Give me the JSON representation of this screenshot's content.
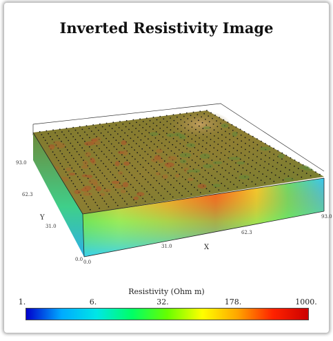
{
  "chart_data": {
    "type": "heatmap",
    "title": "Inverted Resistivity Image",
    "xlabel": "X",
    "ylabel": "Y",
    "x_ticks": [
      "0.0",
      "31.0",
      "62.3",
      "93.0"
    ],
    "y_ticks": [
      "0.0",
      "31.0",
      "62.3",
      "93.0"
    ],
    "colorbar": {
      "label": "Resistivity (Ohm m)",
      "ticks": [
        "1.",
        "6.",
        "32.",
        "178.",
        "1000."
      ],
      "tick_values": [
        1,
        6,
        32,
        178,
        1000
      ],
      "scale": "log",
      "colors": [
        "#0000cc",
        "#00aaff",
        "#00e6e6",
        "#00ff66",
        "#66ff00",
        "#ffff00",
        "#ffa500",
        "#ff2200",
        "#cc0000"
      ]
    },
    "surface_color": "#8a7a30",
    "front_face_profile": [
      {
        "x": 0.0,
        "top": 320,
        "mid": 90,
        "bottom": 40
      },
      {
        "x": 15.5,
        "top": 420,
        "mid": 110,
        "bottom": 25
      },
      {
        "x": 31.0,
        "top": 600,
        "mid": 150,
        "bottom": 20
      },
      {
        "x": 46.5,
        "top": 750,
        "mid": 120,
        "bottom": 15
      },
      {
        "x": 62.3,
        "top": 650,
        "mid": 60,
        "bottom": 12
      },
      {
        "x": 77.5,
        "top": 90,
        "mid": 30,
        "bottom": 10
      },
      {
        "x": 93.0,
        "top": 40,
        "mid": 20,
        "bottom": 8
      }
    ]
  }
}
